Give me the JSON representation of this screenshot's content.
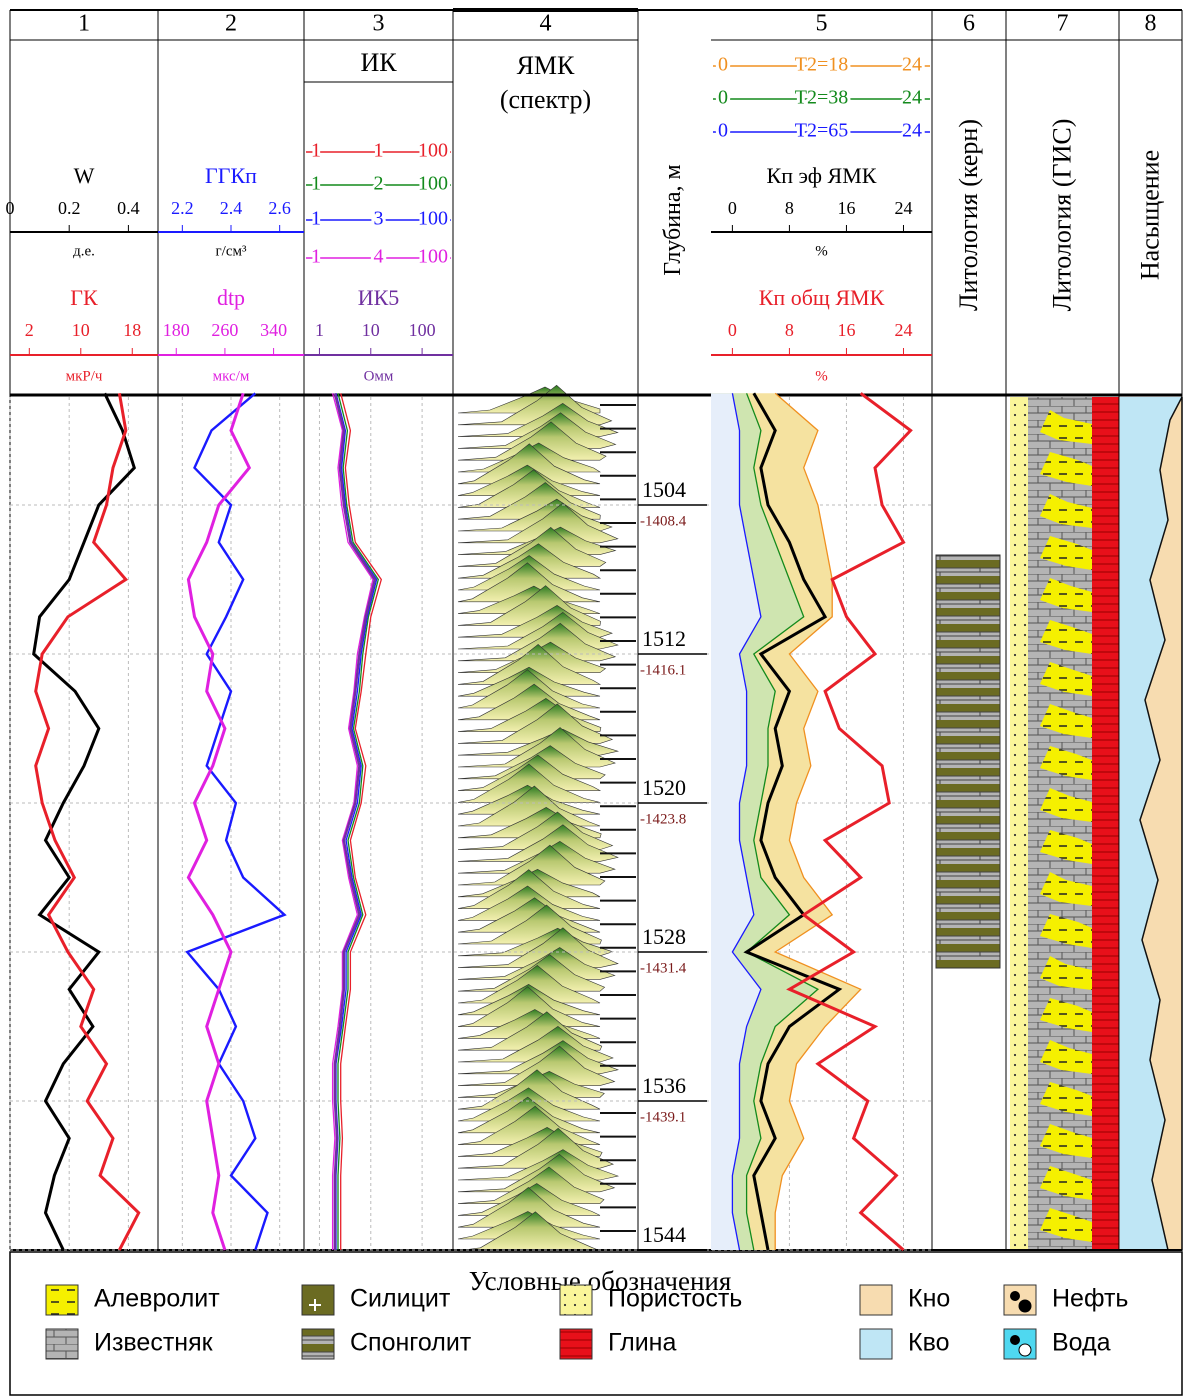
{
  "depth": {
    "title": "Глубина, м",
    "lim": [
      1498.2,
      1544
    ],
    "ticks": [
      1504,
      1512,
      1520,
      1528,
      1536,
      1544
    ],
    "tvd": [
      -1408.4,
      -1416.1,
      -1423.8,
      -1431.4,
      -1439.1
    ],
    "samples": [
      1498,
      1500,
      1502,
      1504,
      1506,
      1508,
      1510,
      1512,
      1514,
      1516,
      1518,
      1520,
      1522,
      1524,
      1526,
      1528,
      1530,
      1532,
      1534,
      1536,
      1538,
      1540,
      1542,
      1544
    ]
  },
  "tracks": [
    {
      "number": "1",
      "curves": [
        {
          "name": "W",
          "color": "#000000",
          "unit": "д.е.",
          "lim": [
            0,
            0.5
          ],
          "ticks": [
            0,
            0.2,
            0.4
          ],
          "values": [
            0.32,
            0.38,
            0.42,
            0.3,
            0.25,
            0.2,
            0.1,
            0.08,
            0.22,
            0.3,
            0.25,
            0.18,
            0.12,
            0.2,
            0.1,
            0.3,
            0.2,
            0.28,
            0.18,
            0.12,
            0.2,
            0.15,
            0.12,
            0.18
          ]
        },
        {
          "name": "ГК",
          "color": "#e8202a",
          "unit": "мкР/ч",
          "lim": [
            -1,
            22
          ],
          "ticks": [
            2,
            10,
            18
          ],
          "values": [
            16,
            17,
            15,
            14,
            12,
            17,
            8,
            4,
            3,
            5,
            3,
            4,
            6,
            9,
            5,
            8,
            12,
            10,
            14,
            11,
            15,
            13,
            19,
            16
          ]
        }
      ]
    },
    {
      "number": "2",
      "curves": [
        {
          "name": "ГГКп",
          "color": "#1a1aff",
          "unit": "г/см³",
          "lim": [
            2.1,
            2.7
          ],
          "ticks": [
            2.2,
            2.4,
            2.6
          ],
          "values": [
            2.5,
            2.32,
            2.25,
            2.4,
            2.35,
            2.45,
            2.38,
            2.3,
            2.4,
            2.35,
            2.3,
            2.42,
            2.38,
            2.45,
            2.62,
            2.22,
            2.35,
            2.42,
            2.35,
            2.45,
            2.5,
            2.4,
            2.55,
            2.5
          ]
        },
        {
          "name": "dtp",
          "color": "#e020e0",
          "unit": "мкс/м",
          "lim": [
            150,
            390
          ],
          "ticks": [
            180,
            260,
            340
          ],
          "values": [
            290,
            270,
            300,
            250,
            230,
            200,
            210,
            240,
            230,
            260,
            240,
            210,
            230,
            200,
            240,
            270,
            250,
            230,
            250,
            230,
            240,
            250,
            240,
            260
          ]
        }
      ]
    },
    {
      "number": "3",
      "title": "ИК",
      "range_curves": [
        {
          "name": "1",
          "color": "#e8202a",
          "range": [
            1,
            100
          ],
          "values": [
            2.6,
            4,
            3.2,
            3.8,
            5,
            16,
            10,
            8,
            6.5,
            5,
            8,
            6.5,
            4,
            5,
            8,
            4,
            4,
            3.2,
            2.6,
            2.6,
            2.8,
            2.6,
            2.6,
            2.6
          ]
        },
        {
          "name": "2",
          "color": "#138a1c",
          "range": [
            1,
            100
          ],
          "values": [
            2.3,
            3.5,
            2.9,
            3.4,
            4.5,
            14,
            9,
            7,
            6,
            4.6,
            7,
            6,
            3.6,
            4.6,
            7,
            3.6,
            3.6,
            2.9,
            2.3,
            2.3,
            2.5,
            2.3,
            2.3,
            2.3
          ]
        },
        {
          "name": "3",
          "color": "#1a1aff",
          "range": [
            1,
            100
          ],
          "values": [
            2.1,
            3.2,
            2.7,
            3.2,
            4.2,
            13,
            8.5,
            6.5,
            5.5,
            4.3,
            6.5,
            5.5,
            3.3,
            4.3,
            6.5,
            3.3,
            3.3,
            2.7,
            2.1,
            2.1,
            2.3,
            2.1,
            2.1,
            2.1
          ]
        },
        {
          "name": "4",
          "color": "#e020e0",
          "range": [
            1,
            100
          ],
          "values": [
            1.8,
            2.8,
            2.3,
            2.7,
            3.6,
            11,
            7.5,
            5.5,
            4.7,
            3.7,
            5.5,
            4.7,
            2.8,
            3.7,
            5.5,
            2.8,
            2.8,
            2.3,
            1.8,
            1.8,
            2,
            1.8,
            1.8,
            1.8
          ]
        }
      ],
      "curves": [
        {
          "name": "ИК5",
          "color": "#7030a0",
          "unit": "Омм",
          "lim": [
            0.5,
            400
          ],
          "log": true,
          "ticks": [
            1,
            10,
            100
          ],
          "values": [
            2,
            3,
            2.5,
            3,
            4,
            12,
            8,
            6,
            5,
            4,
            6,
            5,
            3,
            4,
            6,
            3,
            3,
            2.5,
            2,
            2,
            2.2,
            2,
            2,
            2
          ]
        }
      ]
    },
    {
      "number": "4",
      "title": [
        "ЯМК",
        "(спектр)"
      ]
    },
    {
      "number": "5",
      "range_curves": [
        {
          "name": "T2=18",
          "color": "#f09020",
          "fill": "#f5e2a0",
          "range": [
            0,
            24
          ],
          "values": [
            6,
            12,
            10,
            12,
            13,
            14,
            14,
            8,
            12,
            10,
            11,
            9,
            8,
            10,
            14,
            6,
            18,
            13,
            9,
            8,
            10,
            7,
            6,
            6
          ]
        },
        {
          "name": "T2=38",
          "color": "#138a1c",
          "fill": "#cfe5b0",
          "range": [
            0,
            24
          ],
          "values": [
            2,
            4,
            3,
            4,
            6,
            8,
            10,
            3,
            6,
            5,
            5,
            4,
            3,
            4,
            8,
            2,
            12,
            6,
            4,
            3,
            4,
            2,
            2,
            3
          ]
        },
        {
          "name": "T2=65",
          "color": "#1a1aff",
          "fill": "#e6eefa",
          "range": [
            0,
            24
          ],
          "values": [
            0,
            1,
            1,
            1,
            2,
            3,
            4,
            1,
            2,
            2,
            2,
            1,
            1,
            2,
            3,
            0,
            4,
            2,
            1,
            1,
            1,
            0,
            0,
            1
          ]
        }
      ],
      "curves": [
        {
          "name": "Кп эф ЯМК",
          "color": "#000000",
          "unit": "%",
          "lim": [
            -3,
            28
          ],
          "ticks": [
            0,
            8,
            16,
            24
          ],
          "values": [
            3,
            6,
            4,
            5,
            8,
            10,
            13,
            4,
            8,
            6,
            7,
            5,
            4,
            6,
            10,
            2,
            15,
            8,
            5,
            4,
            6,
            3,
            4,
            5
          ]
        },
        {
          "name": "Кп общ ЯМК",
          "color": "#e8202a",
          "unit": "%",
          "lim": [
            -3,
            28
          ],
          "ticks": [
            0,
            8,
            16,
            24
          ],
          "values": [
            18,
            25,
            20,
            21,
            24,
            14,
            16,
            20,
            13,
            15,
            21,
            22,
            13,
            18,
            10,
            17,
            8,
            20,
            12,
            19,
            17,
            23,
            18,
            24
          ]
        }
      ]
    },
    {
      "number": "6",
      "title": "Литология (керн)"
    },
    {
      "number": "7",
      "title": "Литология (ГИС)"
    },
    {
      "number": "8",
      "title": "Насыщение"
    }
  ],
  "legend": {
    "title": "Условные обозначения",
    "items": [
      "Алевролит",
      "Известняк",
      "Силицит",
      "Спонголит",
      "Пористость",
      "Глина",
      "Кно",
      "Кво",
      "Нефть",
      "Вода"
    ]
  }
}
